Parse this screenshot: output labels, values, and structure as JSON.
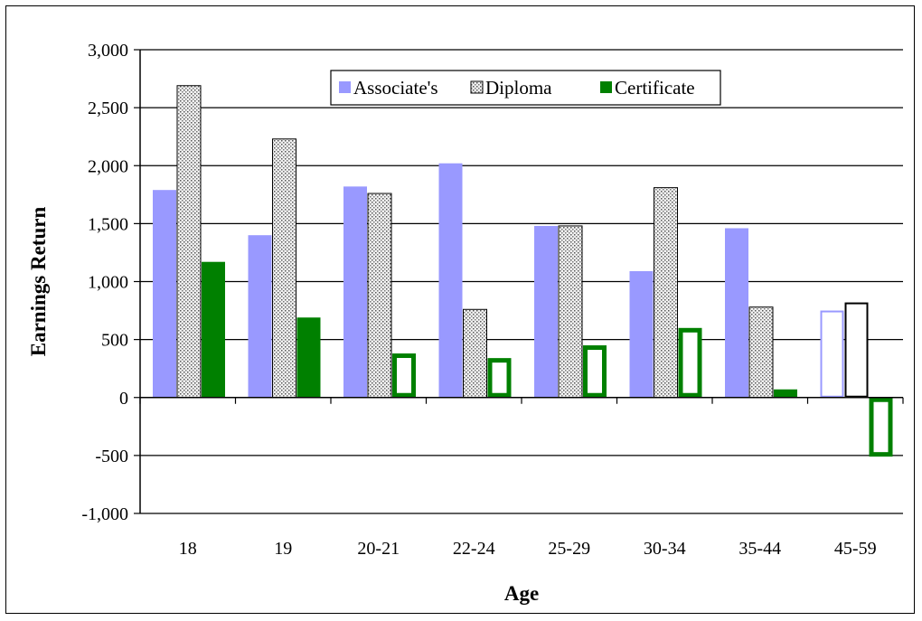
{
  "chart_data": {
    "type": "bar",
    "title": "",
    "xlabel": "Age",
    "ylabel": "Earnings Return",
    "ylim": [
      -1000,
      3000
    ],
    "yticks": [
      -1000,
      -500,
      0,
      500,
      1000,
      1500,
      2000,
      2500,
      3000
    ],
    "ytick_labels": [
      "-1,000",
      "-500",
      "0",
      "500",
      "1,000",
      "1,500",
      "2,000",
      "2,500",
      "3,000"
    ],
    "grid": "horizontal",
    "legend_position": "top-right",
    "categories": [
      "18",
      "19",
      "20-21",
      "22-24",
      "25-29",
      "30-34",
      "35-44",
      "45-59"
    ],
    "series": [
      {
        "name": "Associate's",
        "color": "#9999ff",
        "values": [
          1790,
          1400,
          1820,
          2020,
          1480,
          1090,
          1460,
          750
        ],
        "hollow": [
          false,
          false,
          false,
          false,
          false,
          false,
          false,
          true
        ]
      },
      {
        "name": "Diploma",
        "color": "#d9d9d9",
        "pattern": "dotted",
        "values": [
          2690,
          2230,
          1760,
          760,
          1480,
          1810,
          780,
          820
        ],
        "hollow": [
          false,
          false,
          false,
          false,
          false,
          false,
          false,
          true
        ]
      },
      {
        "name": "Certificate",
        "color": "#008000",
        "values": [
          1170,
          690,
          380,
          340,
          450,
          600,
          70,
          -510
        ],
        "hollow": [
          false,
          false,
          true,
          true,
          true,
          true,
          true,
          true
        ]
      }
    ]
  }
}
